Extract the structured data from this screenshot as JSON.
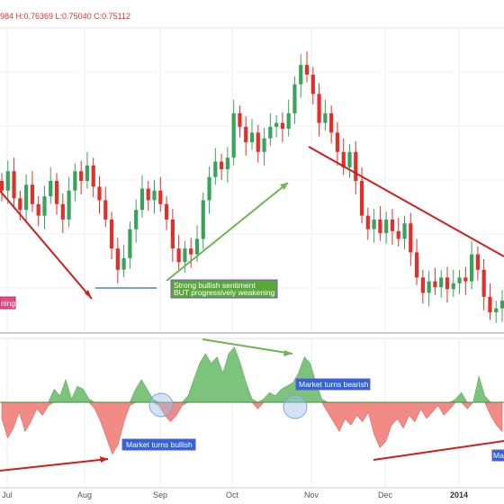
{
  "colors": {
    "up": "#3aa35b",
    "down": "#e0302a",
    "osc_pos": "#7cc47c",
    "osc_neg": "#f28a86",
    "red_line": "#cc1f1f",
    "green_line": "#6fb552",
    "blue_line": "#4a7ed8",
    "ann_blue": "#2f63d6",
    "ann_green": "#5aa83a",
    "ann_pink": "#e74b86",
    "circle": "#9ec2e6"
  },
  "ohlc_label": "984 H:0.76369 L:0.75040 C:0.75112",
  "annotations": {
    "strong_bullish_line1": "Strong bullish sentiment",
    "strong_bullish_line2": "BUT progressively weakening",
    "pink_fragment": "ning",
    "market_bearish": "Market turns bearish",
    "market_bullish": "Market turns bullish",
    "ma_fragment": "Ma"
  },
  "chart_data": [
    {
      "type": "candlestick",
      "description_text": "price panel",
      "x_ticks": [
        "Jul",
        "Aug",
        "Sep",
        "Oct",
        "Nov",
        "Dec",
        "2014"
      ],
      "series": [
        {
          "o": 0.93,
          "c": 0.925
        },
        {
          "o": 0.925,
          "c": 0.935
        },
        {
          "o": 0.935,
          "c": 0.921
        },
        {
          "o": 0.921,
          "c": 0.915
        },
        {
          "o": 0.915,
          "c": 0.928
        },
        {
          "o": 0.928,
          "c": 0.918
        },
        {
          "o": 0.918,
          "c": 0.912
        },
        {
          "o": 0.912,
          "c": 0.922
        },
        {
          "o": 0.922,
          "c": 0.93
        },
        {
          "o": 0.93,
          "c": 0.918
        },
        {
          "o": 0.918,
          "c": 0.91
        },
        {
          "o": 0.91,
          "c": 0.925
        },
        {
          "o": 0.925,
          "c": 0.935
        },
        {
          "o": 0.935,
          "c": 0.93
        },
        {
          "o": 0.93,
          "c": 0.938
        },
        {
          "o": 0.938,
          "c": 0.927
        },
        {
          "o": 0.927,
          "c": 0.92
        },
        {
          "o": 0.92,
          "c": 0.91
        },
        {
          "o": 0.91,
          "c": 0.895
        },
        {
          "o": 0.895,
          "c": 0.884
        },
        {
          "o": 0.884,
          "c": 0.89
        },
        {
          "o": 0.89,
          "c": 0.905
        },
        {
          "o": 0.905,
          "c": 0.915
        },
        {
          "o": 0.915,
          "c": 0.926
        },
        {
          "o": 0.926,
          "c": 0.92
        },
        {
          "o": 0.92,
          "c": 0.925
        },
        {
          "o": 0.925,
          "c": 0.918
        },
        {
          "o": 0.918,
          "c": 0.91
        },
        {
          "o": 0.91,
          "c": 0.895
        },
        {
          "o": 0.895,
          "c": 0.888
        },
        {
          "o": 0.888,
          "c": 0.895
        },
        {
          "o": 0.895,
          "c": 0.892
        },
        {
          "o": 0.892,
          "c": 0.9
        },
        {
          "o": 0.9,
          "c": 0.92
        },
        {
          "o": 0.92,
          "c": 0.932
        },
        {
          "o": 0.932,
          "c": 0.94
        },
        {
          "o": 0.94,
          "c": 0.936
        },
        {
          "o": 0.936,
          "c": 0.942
        },
        {
          "o": 0.942,
          "c": 0.965
        },
        {
          "o": 0.965,
          "c": 0.958
        },
        {
          "o": 0.958,
          "c": 0.95
        },
        {
          "o": 0.95,
          "c": 0.955
        },
        {
          "o": 0.955,
          "c": 0.945
        },
        {
          "o": 0.945,
          "c": 0.952
        },
        {
          "o": 0.952,
          "c": 0.958
        },
        {
          "o": 0.958,
          "c": 0.96
        },
        {
          "o": 0.96,
          "c": 0.957
        },
        {
          "o": 0.957,
          "c": 0.965
        },
        {
          "o": 0.965,
          "c": 0.98
        },
        {
          "o": 0.98,
          "c": 0.99
        },
        {
          "o": 0.99,
          "c": 0.985
        },
        {
          "o": 0.985,
          "c": 0.975
        },
        {
          "o": 0.975,
          "c": 0.96
        },
        {
          "o": 0.96,
          "c": 0.965
        },
        {
          "o": 0.965,
          "c": 0.955
        },
        {
          "o": 0.955,
          "c": 0.945
        },
        {
          "o": 0.945,
          "c": 0.937
        },
        {
          "o": 0.937,
          "c": 0.945
        },
        {
          "o": 0.945,
          "c": 0.93
        },
        {
          "o": 0.93,
          "c": 0.912
        },
        {
          "o": 0.912,
          "c": 0.905
        },
        {
          "o": 0.905,
          "c": 0.91
        },
        {
          "o": 0.91,
          "c": 0.903
        },
        {
          "o": 0.903,
          "c": 0.91
        },
        {
          "o": 0.91,
          "c": 0.904
        },
        {
          "o": 0.904,
          "c": 0.9
        },
        {
          "o": 0.9,
          "c": 0.908
        },
        {
          "o": 0.908,
          "c": 0.893
        },
        {
          "o": 0.893,
          "c": 0.88
        },
        {
          "o": 0.88,
          "c": 0.872
        },
        {
          "o": 0.872,
          "c": 0.878
        },
        {
          "o": 0.878,
          "c": 0.875
        },
        {
          "o": 0.875,
          "c": 0.88
        },
        {
          "o": 0.88,
          "c": 0.874
        },
        {
          "o": 0.874,
          "c": 0.877
        },
        {
          "o": 0.877,
          "c": 0.88
        },
        {
          "o": 0.88,
          "c": 0.878
        },
        {
          "o": 0.878,
          "c": 0.892
        },
        {
          "o": 0.892,
          "c": 0.884
        },
        {
          "o": 0.884,
          "c": 0.87
        },
        {
          "o": 0.87,
          "c": 0.862
        },
        {
          "o": 0.862,
          "c": 0.864
        },
        {
          "o": 0.864,
          "c": 0.868
        }
      ]
    },
    {
      "type": "area",
      "description_text": "oscillator panel",
      "x_ticks": [
        "Jul",
        "Aug",
        "Sep",
        "Oct",
        "Nov",
        "Dec",
        "2014"
      ],
      "ylim": [
        -1,
        1
      ],
      "values": [
        -0.25,
        -0.55,
        -0.4,
        -0.15,
        -0.45,
        -0.3,
        -0.1,
        -0.2,
        -0.05,
        0.2,
        0.1,
        0.35,
        0.05,
        0.25,
        0.2,
        0.05,
        -0.1,
        -0.3,
        -0.55,
        -0.8,
        -0.65,
        -0.3,
        -0.05,
        0.2,
        0.35,
        0.2,
        0.05,
        -0.05,
        -0.2,
        -0.3,
        -0.2,
        -0.05,
        0.1,
        0.35,
        0.6,
        0.75,
        0.6,
        0.7,
        0.45,
        0.75,
        0.85,
        0.6,
        0.3,
        0.05,
        -0.1,
        0.05,
        0.15,
        0.1,
        0.2,
        0.25,
        0.3,
        0.45,
        0.7,
        0.6,
        0.3,
        0.05,
        -0.15,
        -0.3,
        -0.45,
        -0.25,
        -0.35,
        -0.2,
        -0.3,
        -0.15,
        -0.5,
        -0.7,
        -0.6,
        -0.35,
        -0.25,
        -0.4,
        -0.2,
        -0.3,
        -0.1,
        -0.25,
        -0.15,
        -0.05,
        -0.2,
        -0.1,
        0.05,
        0.15,
        -0.1,
        0.0,
        0.4,
        0.1,
        -0.2,
        -0.35,
        -0.45
      ]
    }
  ]
}
